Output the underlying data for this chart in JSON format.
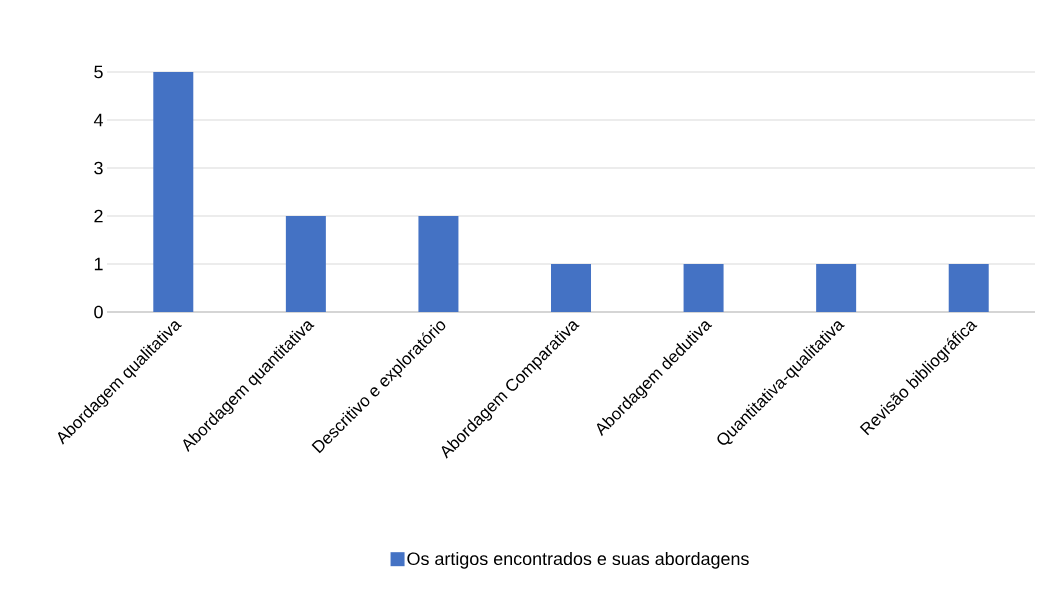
{
  "chart_data": {
    "type": "bar",
    "categories": [
      "Abordagem qualitativa",
      "Abordagem quantitativa",
      "Descritivo e exploratório",
      "Abordagem Comparativa",
      "Abordagem dedutiva",
      "Quantitativa-qualitativa",
      "Revisão bibliográfica"
    ],
    "series": [
      {
        "name": "Os artigos encontrados  e suas abordagens",
        "color": "#4472c4",
        "values": [
          5,
          2,
          2,
          1,
          1,
          1,
          1
        ]
      }
    ],
    "ylim": [
      0,
      5
    ],
    "yticks": [
      0,
      1,
      2,
      3,
      4,
      5
    ],
    "grid": "y",
    "legend": "bottom"
  }
}
